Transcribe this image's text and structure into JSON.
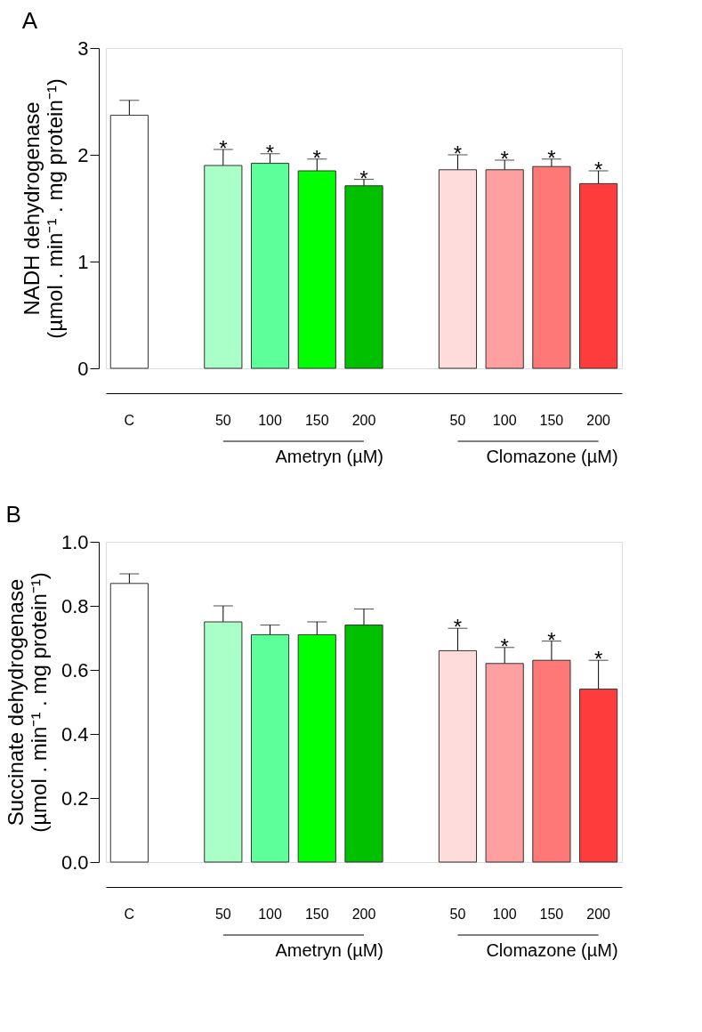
{
  "chart_data": [
    {
      "type": "bar",
      "title": "A",
      "ylabel": "NADH dehydrogenase\n(µmol . min⁻¹ . mg protein⁻¹)",
      "categories": [
        "C",
        null,
        "50",
        "100",
        "150",
        "200",
        null,
        "50",
        "100",
        "150",
        "200"
      ],
      "values": [
        2.37,
        null,
        1.9,
        1.92,
        1.85,
        1.71,
        null,
        1.86,
        1.86,
        1.89,
        1.73
      ],
      "errors": [
        0.14,
        null,
        0.15,
        0.09,
        0.11,
        0.06,
        null,
        0.14,
        0.09,
        0.07,
        0.12
      ],
      "colors": [
        "#ffffff",
        null,
        "#aaffc8",
        "#5cff99",
        "#00ff00",
        "#00c000",
        null,
        "#ffdcdc",
        "#ffa0a0",
        "#ff7878",
        "#ff3c3c"
      ],
      "value_labels": [
        null,
        null,
        "*",
        "*",
        "*",
        "*",
        null,
        "*",
        "*",
        "*",
        "*"
      ],
      "annotations": [
        "Ametryn (µM)",
        "Clomazone (µM)"
      ],
      "ylim": [
        0,
        3
      ],
      "yticks": [
        0,
        1,
        2,
        3
      ],
      "grid": false
    },
    {
      "type": "bar",
      "title": "B",
      "ylabel": "Succinate dehydrogenase\n(µmol . min⁻¹ . mg protein⁻¹)",
      "categories": [
        "C",
        null,
        "50",
        "100",
        "150",
        "200",
        null,
        "50",
        "100",
        "150",
        "200"
      ],
      "values": [
        0.87,
        null,
        0.75,
        0.71,
        0.71,
        0.74,
        null,
        0.66,
        0.62,
        0.63,
        0.54
      ],
      "errors": [
        0.03,
        null,
        0.05,
        0.03,
        0.04,
        0.05,
        null,
        0.07,
        0.05,
        0.06,
        0.09
      ],
      "colors": [
        "#ffffff",
        null,
        "#aaffc8",
        "#5cff99",
        "#00ff00",
        "#00c000",
        null,
        "#ffdcdc",
        "#ffa0a0",
        "#ff7878",
        "#ff3c3c"
      ],
      "value_labels": [
        null,
        null,
        null,
        null,
        null,
        null,
        null,
        "*",
        "*",
        "*",
        "*"
      ],
      "annotations": [
        "Ametryn (µM)",
        "Clomazone (µM)"
      ],
      "ylim": [
        0,
        1.0
      ],
      "yticks": [
        {
          "value": 0,
          "label": "0.0"
        },
        0.2,
        0.4,
        0.6,
        0.8,
        {
          "value": 1.0,
          "label": "1.0"
        }
      ],
      "grid": false
    }
  ]
}
